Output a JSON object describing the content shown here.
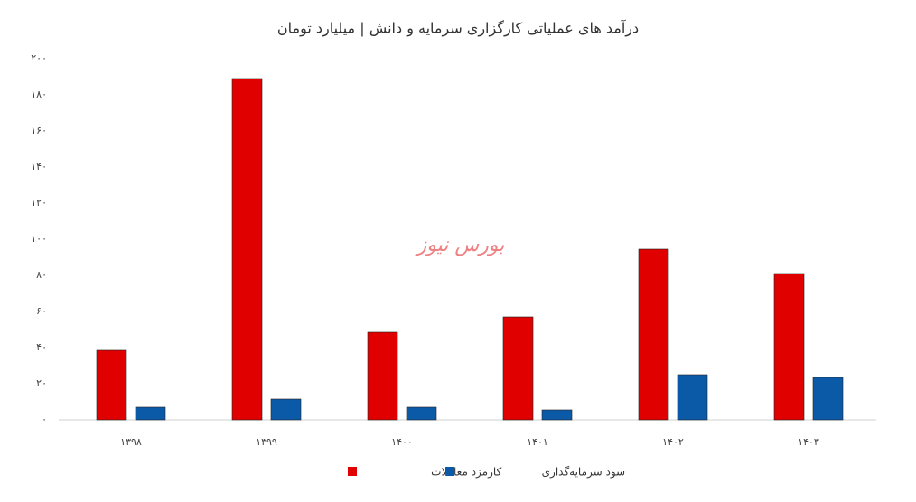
{
  "chart_data": {
    "type": "bar",
    "title": "درآمد های عملیاتی کارگزاری سرمایه و دانش | میلیارد تومان",
    "watermark": "بورس نیوز",
    "categories": [
      "۱۳۹۸",
      "۱۳۹۹",
      "۱۴۰۰",
      "۱۴۰۱",
      "۱۴۰۲",
      "۱۴۰۳"
    ],
    "series": [
      {
        "name": "کارمزد معاملات",
        "color": "#e00000",
        "values": [
          38.5,
          189,
          48.5,
          57,
          94.5,
          81
        ]
      },
      {
        "name": "سود سرمایه‌گذاری",
        "color": "#0a5aa8",
        "values": [
          7,
          11.5,
          7,
          5.5,
          25,
          23.5
        ]
      }
    ],
    "ylim": [
      0,
      200
    ],
    "yticks": [
      {
        "value": 0,
        "label": "۰"
      },
      {
        "value": 20,
        "label": "۲۰"
      },
      {
        "value": 40,
        "label": "۴۰"
      },
      {
        "value": 60,
        "label": "۶۰"
      },
      {
        "value": 80,
        "label": "۸۰"
      },
      {
        "value": 100,
        "label": "۱۰۰"
      },
      {
        "value": 120,
        "label": "۱۲۰"
      },
      {
        "value": 140,
        "label": "۱۴۰"
      },
      {
        "value": 160,
        "label": "۱۶۰"
      },
      {
        "value": 180,
        "label": "۱۸۰"
      },
      {
        "value": 200,
        "label": "۲۰۰"
      }
    ],
    "grid": false
  }
}
